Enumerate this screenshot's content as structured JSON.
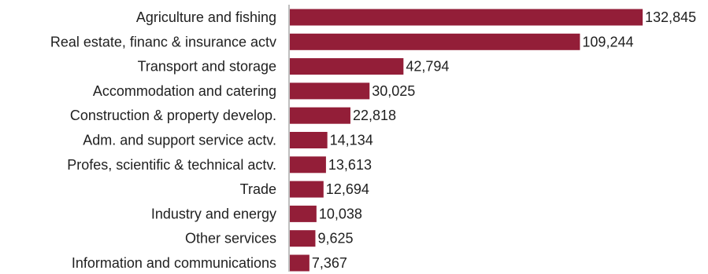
{
  "chart_data": {
    "type": "bar",
    "orientation": "horizontal",
    "title": "",
    "xlabel": "",
    "ylabel": "",
    "categories": [
      "Agriculture and fishing",
      "Real estate, financ & insurance actv",
      "Transport and storage",
      "Accommodation and catering",
      "Construction & property develop.",
      "Adm. and support service actv.",
      "Profes, scientific & technical actv.",
      "Trade",
      "Industry and energy",
      "Other services",
      "Information and communications"
    ],
    "values": [
      132845,
      109244,
      42794,
      30025,
      22818,
      14134,
      13613,
      12694,
      10038,
      9625,
      7367
    ],
    "value_labels": [
      "132,845",
      "109,244",
      "42,794",
      "30,025",
      "22,818",
      "14,134",
      "13,613",
      "12,694",
      "10,038",
      "9,625",
      "7,367"
    ],
    "xlim": [
      0,
      140000
    ],
    "grid": false,
    "legend": "none",
    "bar_color": "#931e38"
  }
}
